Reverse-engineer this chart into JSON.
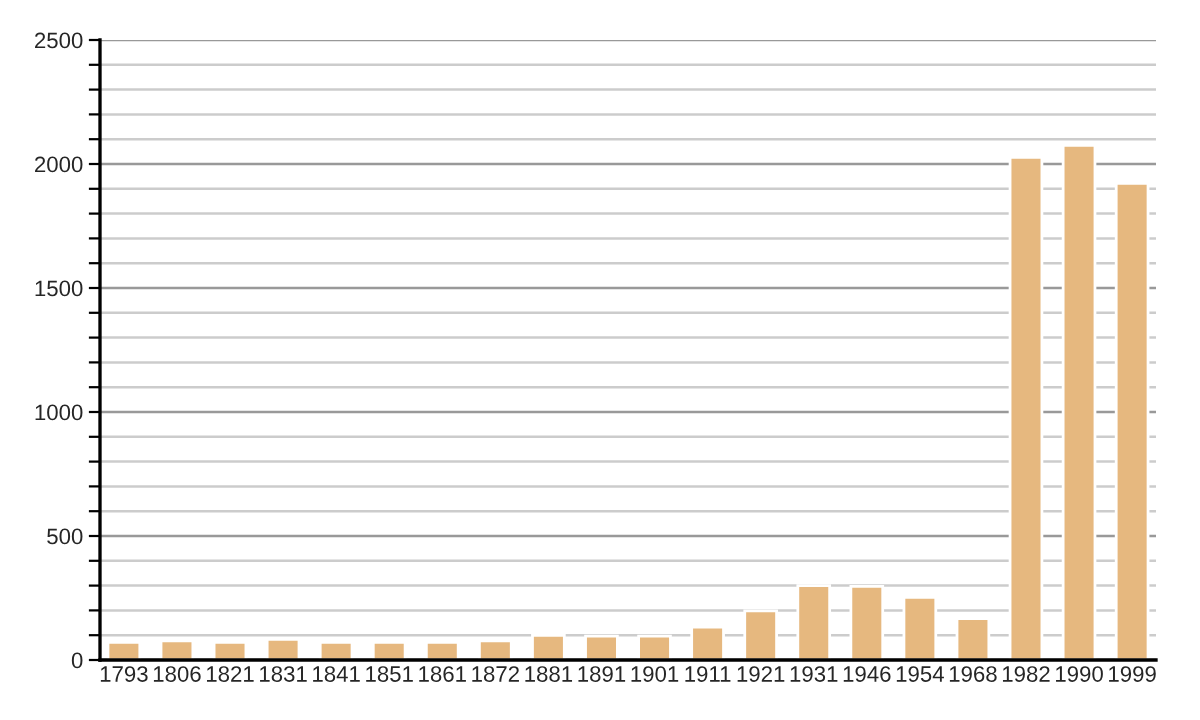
{
  "chart_data": {
    "type": "bar",
    "categories": [
      "1793",
      "1806",
      "1821",
      "1831",
      "1841",
      "1851",
      "1861",
      "1872",
      "1881",
      "1891",
      "1901",
      "1911",
      "1921",
      "1931",
      "1946",
      "1954",
      "1968",
      "1982",
      "1990",
      "1999"
    ],
    "values": [
      71,
      77,
      71,
      83,
      71,
      71,
      71,
      77,
      99,
      96,
      96,
      133,
      198,
      300,
      297,
      253,
      167,
      2027,
      2075,
      1922
    ],
    "color": "#e6b87f",
    "ylim": [
      0,
      2500
    ],
    "yticks": [
      0,
      {
        "value": 100,
        "label": null
      },
      {
        "value": 200,
        "label": null
      },
      {
        "value": 300,
        "label": null
      },
      {
        "value": 400,
        "label": null
      },
      500,
      {
        "value": 600,
        "label": null
      },
      {
        "value": 700,
        "label": null
      },
      {
        "value": 800,
        "label": null
      },
      {
        "value": 900,
        "label": null
      },
      1000,
      {
        "value": 1100,
        "label": null
      },
      {
        "value": 1200,
        "label": null
      },
      {
        "value": 1300,
        "label": null
      },
      {
        "value": 1400,
        "label": null
      },
      1500,
      {
        "value": 1600,
        "label": null
      },
      {
        "value": 1700,
        "label": null
      },
      {
        "value": 1800,
        "label": null
      },
      {
        "value": 1900,
        "label": null
      },
      2000,
      {
        "value": 2100,
        "label": null
      },
      {
        "value": 2200,
        "label": null
      },
      {
        "value": 2300,
        "label": null
      },
      {
        "value": 2400,
        "label": null
      },
      2500
    ],
    "grid": "y"
  }
}
